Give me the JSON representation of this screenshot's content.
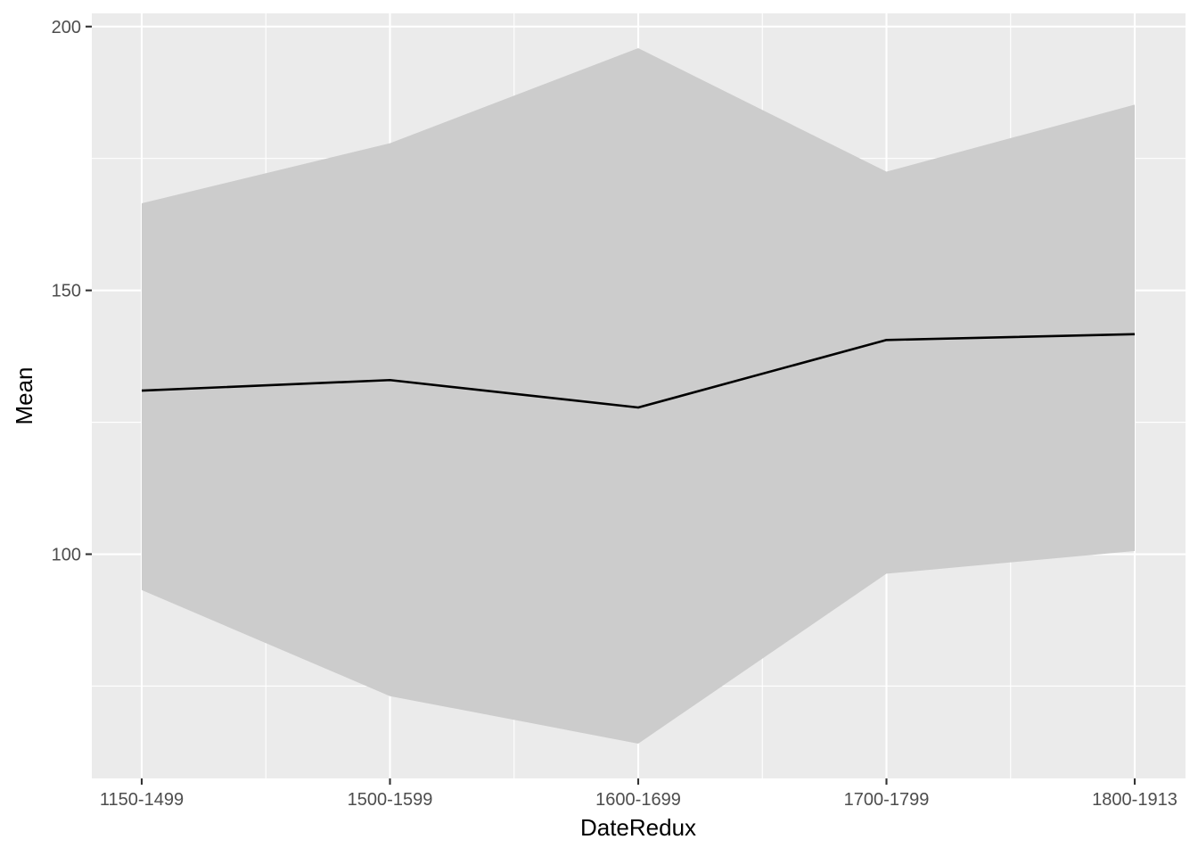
{
  "chart_data": {
    "type": "area",
    "categories": [
      "1150-1499",
      "1500-1599",
      "1600-1699",
      "1700-1799",
      "1800-1913"
    ],
    "series": [
      {
        "values": [
          131,
          133,
          127.8,
          140.6,
          141.7
        ]
      }
    ],
    "ribbon": {
      "lower": [
        93.2,
        73.1,
        64.1,
        96.3,
        100.6
      ],
      "upper": [
        166.5,
        177.9,
        195.9,
        172.5,
        185.2
      ]
    },
    "xlabel": "DateRedux",
    "ylabel": "Mean",
    "yticks": [
      100,
      150,
      200
    ],
    "ylim": [
      57.5,
      202.5
    ],
    "grid": true,
    "colors": {
      "panel": "#ebebeb",
      "ribbon": "#cccccc",
      "line": "#000000",
      "grid": "#ffffff",
      "tick": "#333333"
    }
  }
}
